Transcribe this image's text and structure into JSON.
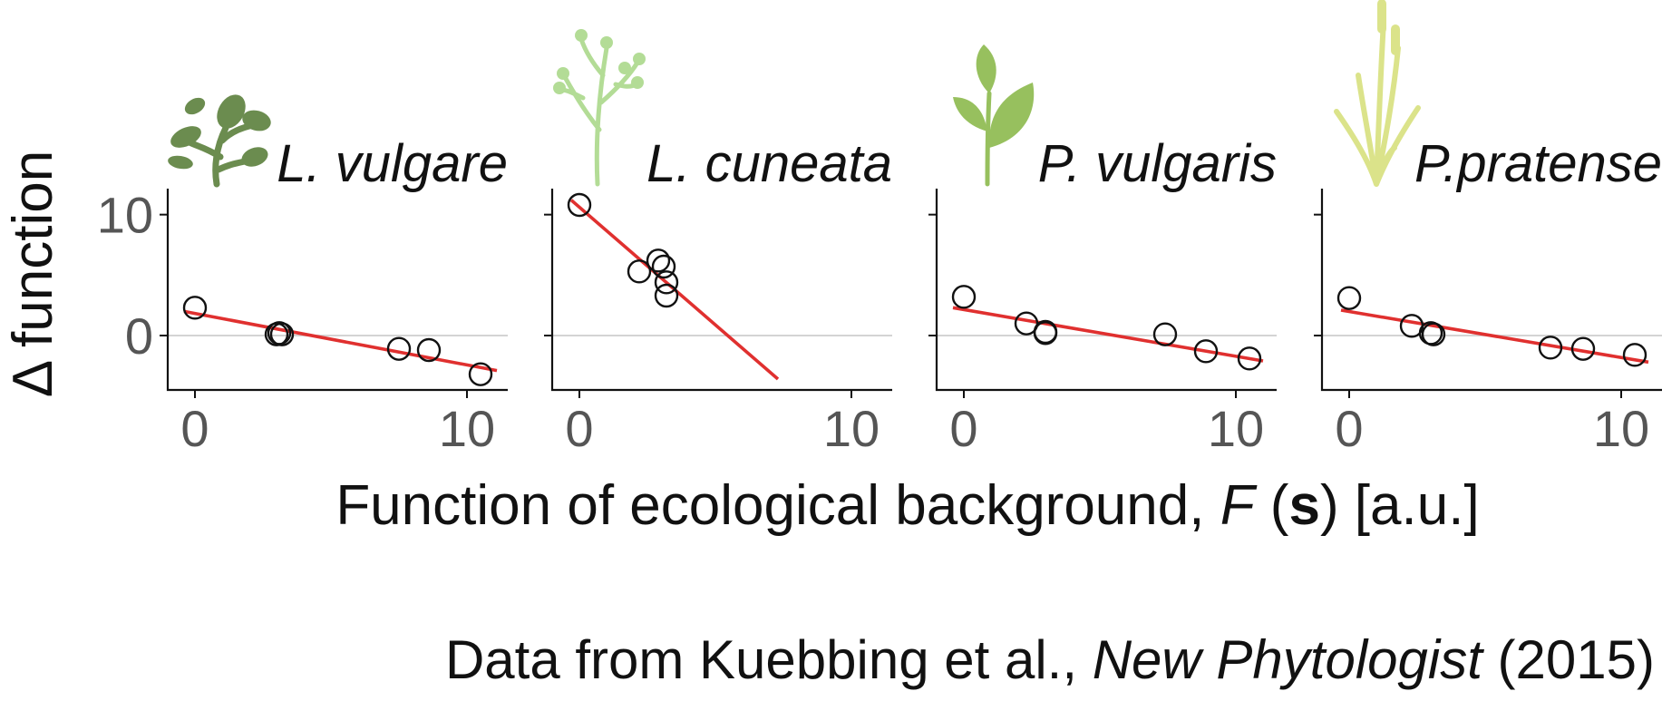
{
  "chart_data": {
    "type": "scatter",
    "ylabel": "Δ function",
    "xlabel": {
      "prefix": "Function of ecological background, ",
      "italic": "F",
      "open": " (",
      "bold": "s",
      "suffix": ") [a.u.]"
    },
    "xlim": [
      -1,
      11.5
    ],
    "ylim": [
      -4.5,
      12
    ],
    "x_ticks": [
      0,
      10
    ],
    "y_ticks": [
      0,
      10
    ],
    "reference_line_y": 0,
    "fit_color": "#e0302f",
    "panels": [
      {
        "title": "L. vulgare",
        "icon": "plant-icon-leafy",
        "icon_color": "#6b8c4f",
        "points": [
          [
            0,
            2.3
          ],
          [
            3.0,
            0.1
          ],
          [
            3.1,
            0.2
          ],
          [
            3.2,
            0.1
          ],
          [
            7.5,
            -1.1
          ],
          [
            8.6,
            -1.2
          ],
          [
            10.5,
            -3.2
          ]
        ],
        "fit": [
          [
            -0.4,
            2.0
          ],
          [
            11.1,
            -2.9
          ]
        ]
      },
      {
        "title": "L. cuneata",
        "icon": "plant-icon-feathery",
        "icon_color": "#b3dc96",
        "points": [
          [
            0,
            10.8
          ],
          [
            2.2,
            5.3
          ],
          [
            2.9,
            6.2
          ],
          [
            3.1,
            5.7
          ],
          [
            3.2,
            4.4
          ],
          [
            3.2,
            3.3
          ]
        ],
        "fit": [
          [
            -0.3,
            11.2
          ],
          [
            7.3,
            -3.6
          ]
        ]
      },
      {
        "title": "P. vulgaris",
        "icon": "plant-icon-leaves",
        "icon_color": "#97c05e",
        "points": [
          [
            0,
            3.2
          ],
          [
            2.3,
            1.0
          ],
          [
            3.0,
            0.3
          ],
          [
            3.0,
            0.2
          ],
          [
            7.4,
            0.1
          ],
          [
            8.9,
            -1.3
          ],
          [
            10.5,
            -1.9
          ]
        ],
        "fit": [
          [
            -0.4,
            2.3
          ],
          [
            11.0,
            -2.1
          ]
        ]
      },
      {
        "title": "P.pratense",
        "icon": "plant-icon-grass",
        "icon_color": "#dbe38a",
        "points": [
          [
            0,
            3.1
          ],
          [
            2.3,
            0.8
          ],
          [
            3.0,
            0.2
          ],
          [
            3.1,
            0.1
          ],
          [
            7.4,
            -1.0
          ],
          [
            8.6,
            -1.1
          ],
          [
            10.5,
            -1.6
          ]
        ],
        "fit": [
          [
            -0.3,
            2.1
          ],
          [
            11.0,
            -2.2
          ]
        ]
      }
    ]
  },
  "caption": {
    "prefix": "Data from Kuebbing et al., ",
    "journal": "New Phytologist",
    "year": " (2015)"
  }
}
